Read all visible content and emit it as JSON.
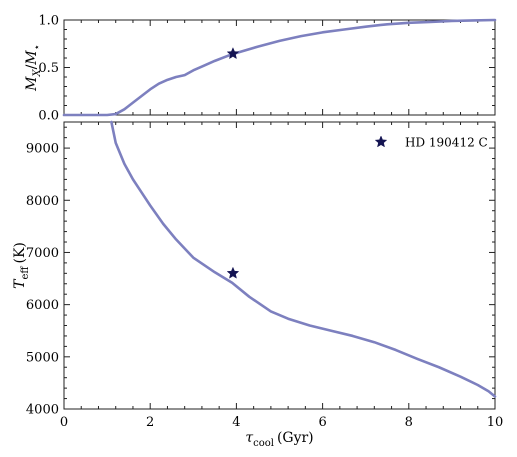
{
  "chart_data": [
    {
      "type": "line",
      "panel": "top",
      "ylabel_main": "M",
      "ylabel_sub1": "X",
      "ylabel_slash": "/",
      "ylabel_main2": "M",
      "ylabel_sub2": "⋆",
      "xlim": [
        0,
        10
      ],
      "ylim": [
        0,
        1
      ],
      "yticks": [
        0.0,
        0.5,
        1.0
      ],
      "ytick_labels": [
        "0.0",
        "0.5",
        "1.0"
      ],
      "xticks": [
        0,
        2,
        4,
        6,
        8,
        10
      ],
      "show_xtick_labels": false,
      "grid": false,
      "series": [
        {
          "color": "#7d80bf",
          "x": [
            0,
            1.0,
            1.2,
            1.4,
            1.6,
            1.8,
            2.0,
            2.2,
            2.4,
            2.6,
            2.8,
            3.0,
            3.2,
            3.5,
            3.9,
            4.5,
            5.0,
            5.5,
            6.0,
            6.5,
            7.0,
            7.5,
            8.0,
            8.5,
            9.0,
            9.5,
            10.0
          ],
          "y": [
            0.0,
            0.0,
            0.01,
            0.06,
            0.13,
            0.2,
            0.27,
            0.33,
            0.37,
            0.4,
            0.42,
            0.47,
            0.51,
            0.57,
            0.64,
            0.72,
            0.78,
            0.83,
            0.87,
            0.9,
            0.93,
            0.955,
            0.97,
            0.98,
            0.99,
            0.995,
            1.0
          ]
        }
      ],
      "markers": [
        {
          "x": 3.92,
          "y": 0.645,
          "shape": "star",
          "color": "#141452"
        }
      ]
    },
    {
      "type": "line",
      "panel": "bottom",
      "xlabel_main": "τ",
      "xlabel_sub": "cool",
      "xlabel_unit": "(Gyr)",
      "ylabel_main": "T",
      "ylabel_sub": "eff",
      "ylabel_unit": "(K)",
      "xlim": [
        0,
        10
      ],
      "ylim": [
        4000,
        9500
      ],
      "xticks": [
        0,
        2,
        4,
        6,
        8,
        10
      ],
      "xtick_labels": [
        "0",
        "2",
        "4",
        "6",
        "8",
        "10"
      ],
      "yticks": [
        4000,
        5000,
        6000,
        7000,
        8000,
        9000
      ],
      "ytick_labels": [
        "4000",
        "5000",
        "6000",
        "7000",
        "8000",
        "9000"
      ],
      "grid": false,
      "legend": {
        "position": "top-right",
        "label": "HD 190412 C",
        "marker": "star"
      },
      "series": [
        {
          "color": "#7d80bf",
          "x": [
            1.1,
            1.2,
            1.4,
            1.6,
            1.8,
            2.0,
            2.3,
            2.6,
            3.0,
            3.5,
            3.9,
            4.3,
            4.8,
            5.2,
            5.7,
            6.2,
            6.7,
            7.2,
            7.7,
            8.2,
            8.7,
            9.2,
            9.6,
            9.85,
            10.0
          ],
          "y": [
            9500,
            9100,
            8700,
            8400,
            8150,
            7900,
            7550,
            7250,
            6900,
            6620,
            6420,
            6150,
            5870,
            5730,
            5600,
            5500,
            5400,
            5280,
            5130,
            4960,
            4800,
            4620,
            4460,
            4340,
            4240
          ]
        }
      ],
      "markers": [
        {
          "x": 3.92,
          "y": 6600,
          "shape": "star",
          "color": "#141452"
        }
      ]
    }
  ]
}
